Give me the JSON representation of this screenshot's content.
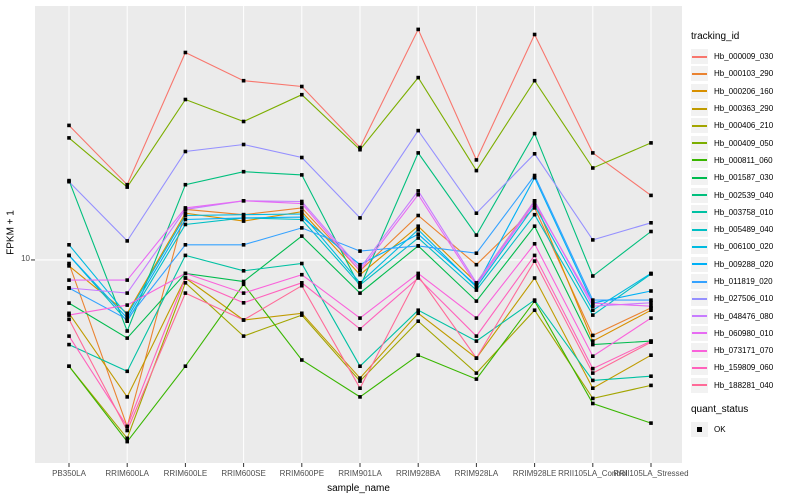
{
  "figure": {
    "x_axis_title": "sample_name",
    "y_axis_title": "FPKM + 1",
    "y_tick_label": "10",
    "legend_color_title": "tracking_id",
    "legend_shape_title": "quant_status",
    "legend_shape_label": "OK"
  },
  "colors": {
    "page_bg": "#FFFFFF",
    "panel_bg": "#EBEBEB",
    "grid": "#FFFFFF",
    "point": "#000000",
    "tick_mark": "#333333",
    "tick_text": "#4D4D4D",
    "legend_key_bg": "#F2F2F2"
  },
  "chart_data": {
    "type": "line",
    "yscale": "log10",
    "ylabel": "FPKM + 1",
    "xlabel": "sample_name",
    "ylim": [
      1.72,
      90.4
    ],
    "y_major_gridline_value": 10,
    "y_tick_values": [
      10
    ],
    "grid": "vertical-major-and-y10",
    "legend_position": "right",
    "point_shape": "filled-square",
    "categories": [
      "PB350LA",
      "RRIM600LA",
      "RRIM600LE",
      "RRIM600SE",
      "RRIM600PE",
      "RRIM901LA",
      "RRIM928BA",
      "RRIM928LA",
      "RRIM928LE",
      "RRII105LA_Control",
      "RRII105LA_Stressed"
    ],
    "series": [
      {
        "name": "Hb_000009_030",
        "color": "#F8766D",
        "values": [
          32.1,
          19.2,
          60.4,
          47.3,
          45,
          26.5,
          73.8,
          23.8,
          70.6,
          25.3,
          17.5
        ]
      },
      {
        "name": "Hb_000103_290",
        "color": "#EA8331",
        "values": [
          9.7,
          2.36,
          15.5,
          14.8,
          15.7,
          9.1,
          14.7,
          9.6,
          15.7,
          5.2,
          6.6
        ]
      },
      {
        "name": "Hb_000206_160",
        "color": "#D89000",
        "values": [
          9.5,
          6.3,
          15,
          14,
          15.2,
          8.8,
          13.4,
          8.2,
          16.7,
          4.95,
          6.47
        ]
      },
      {
        "name": "Hb_000363_290",
        "color": "#C09B00",
        "values": [
          6.3,
          3.05,
          8.55,
          5.94,
          6.3,
          3.59,
          6.3,
          4.27,
          8.55,
          3.29,
          4.38
        ]
      },
      {
        "name": "Hb_000406_210",
        "color": "#A3A500",
        "values": [
          3.98,
          2.13,
          8.2,
          5.17,
          6.2,
          3.5,
          5.88,
          3.75,
          6.47,
          3.01,
          3.37
        ]
      },
      {
        "name": "Hb_000409_050",
        "color": "#7CAE00",
        "values": [
          28.8,
          18.8,
          40.2,
          33.2,
          41.9,
          26,
          48.6,
          21.7,
          47.3,
          22.2,
          27.6
        ]
      },
      {
        "name": "Hb_000811_060",
        "color": "#39B600",
        "values": [
          3.98,
          2.07,
          3.98,
          8.1,
          4.2,
          3.05,
          4.38,
          3.56,
          7,
          2.88,
          2.43
        ]
      },
      {
        "name": "Hb_001587_030",
        "color": "#00BB4E",
        "values": [
          6.88,
          5.08,
          8.9,
          8.3,
          12.3,
          7.5,
          11.3,
          7,
          13.4,
          4.8,
          4.95
        ]
      },
      {
        "name": "Hb_002539_040",
        "color": "#00BF7D",
        "values": [
          19.9,
          5.4,
          19.2,
          21.5,
          20.9,
          7.9,
          25.3,
          12.4,
          29.9,
          8.7,
          12.8
        ]
      },
      {
        "name": "Hb_003758_010",
        "color": "#00C1A3",
        "values": [
          4.8,
          3.81,
          10.4,
          9.1,
          9.7,
          3.98,
          6.47,
          4.95,
          7.06,
          3.52,
          3.65
        ]
      },
      {
        "name": "Hb_005489_040",
        "color": "#00BFC4",
        "values": [
          10.4,
          5.88,
          13.6,
          14.4,
          14.2,
          8.05,
          12.1,
          7.7,
          14.8,
          6.2,
          8.85
        ]
      },
      {
        "name": "Hb_006100_020",
        "color": "#00BAE0",
        "values": [
          11.4,
          6.2,
          14.7,
          14.8,
          14.9,
          8.2,
          13,
          7.9,
          16,
          6.47,
          8.9
        ]
      },
      {
        "name": "Hb_009288_020",
        "color": "#00B0F6",
        "values": [
          10.4,
          6.04,
          14.2,
          14.4,
          14.5,
          9.6,
          12.5,
          8,
          20.4,
          6.88,
          7.64
        ]
      },
      {
        "name": "Hb_011819_020",
        "color": "#35A2FF",
        "values": [
          7.84,
          5.98,
          11.4,
          11.4,
          13.2,
          10.8,
          11.3,
          10.6,
          20.8,
          7.06,
          7.06
        ]
      },
      {
        "name": "Hb_027506_010",
        "color": "#9590FF",
        "values": [
          19.7,
          11.8,
          25.6,
          27.2,
          24.3,
          14.4,
          30.7,
          15,
          25.1,
          11.9,
          13.8
        ]
      },
      {
        "name": "Hb_048476_080",
        "color": "#C77CFF",
        "values": [
          7.84,
          7.5,
          15.5,
          16.7,
          16.6,
          9.3,
          18.2,
          8.2,
          16.7,
          6.7,
          6.9
        ]
      },
      {
        "name": "Hb_060980_010",
        "color": "#E76BF3",
        "values": [
          8.4,
          8.4,
          15.7,
          16.7,
          16.3,
          9.1,
          17.6,
          8.05,
          16.4,
          6.88,
          6.7
        ]
      },
      {
        "name": "Hb_073171_070",
        "color": "#FA62DB",
        "values": [
          6.2,
          6.76,
          8.9,
          7.5,
          8.8,
          6.04,
          8.9,
          6.04,
          11.5,
          4.34,
          6.04
        ]
      },
      {
        "name": "Hb_159809_060",
        "color": "#FF62BC",
        "values": [
          5.17,
          2.36,
          8.55,
          6.9,
          8.2,
          5.5,
          8.55,
          5.17,
          10.4,
          3.9,
          4.95
        ]
      },
      {
        "name": "Hb_188281_040",
        "color": "#FF6A98",
        "values": [
          5.98,
          2.28,
          7.5,
          5.94,
          8,
          3.29,
          8.7,
          4.27,
          9.9,
          3.75,
          4.9
        ]
      }
    ],
    "quant_status": {
      "label": "OK",
      "marker": "black-square"
    }
  }
}
